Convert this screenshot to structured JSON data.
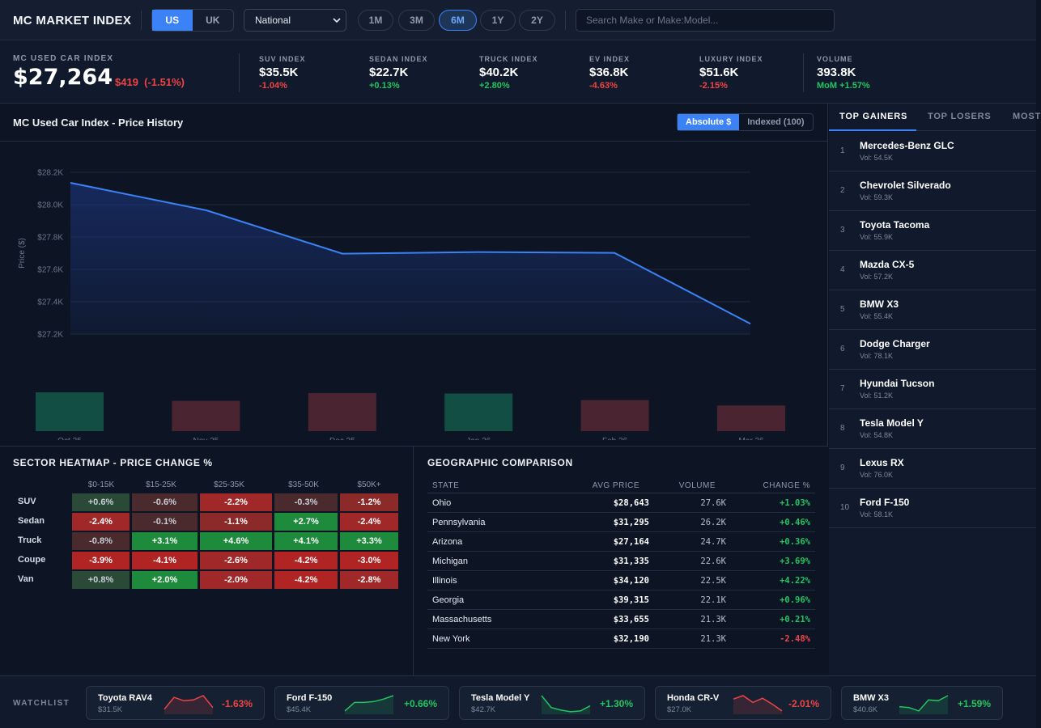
{
  "header": {
    "title": "MC MARKET INDEX",
    "region_options": [
      "US",
      "UK"
    ],
    "region_selected": "US",
    "scope_value": "National",
    "time_ranges": [
      "1M",
      "3M",
      "6M",
      "1Y",
      "2Y"
    ],
    "time_selected": "6M",
    "search_placeholder": "Search Make or Make:Model..."
  },
  "stats": {
    "main_label": "MC USED CAR INDEX",
    "main_value": "$27,264",
    "main_change": "$419  (-1.51%)",
    "items": [
      {
        "label": "SUV INDEX",
        "value": "$35.5K",
        "change": "-1.04%",
        "dir": "neg"
      },
      {
        "label": "SEDAN INDEX",
        "value": "$22.7K",
        "change": "+0.13%",
        "dir": "pos"
      },
      {
        "label": "TRUCK INDEX",
        "value": "$40.2K",
        "change": "+2.80%",
        "dir": "pos"
      },
      {
        "label": "EV INDEX",
        "value": "$36.8K",
        "change": "-4.63%",
        "dir": "neg"
      },
      {
        "label": "LUXURY INDEX",
        "value": "$51.6K",
        "change": "-2.15%",
        "dir": "neg"
      },
      {
        "label": "VOLUME",
        "value": "393.8K",
        "change": "MoM +1.57%",
        "dir": "pos"
      }
    ]
  },
  "chart_panel": {
    "title": "MC Used Car Index - Price History",
    "toggle_options": [
      "Absolute $",
      "Indexed (100)"
    ],
    "toggle_selected": "Absolute $"
  },
  "chart_data": {
    "type": "line",
    "ylabel": "Price ($)",
    "ylim": [
      27200,
      28200
    ],
    "yticks": [
      28200,
      28000,
      27800,
      27600,
      27400,
      27200
    ],
    "ytick_labels": [
      "$28.2K",
      "$28.0K",
      "$27.8K",
      "$27.6K",
      "$27.4K",
      "$27.2K"
    ],
    "x_labels": [
      "Oct 25",
      "Nov 25",
      "Dec 25",
      "Jan 26",
      "Feb 26",
      "Mar 26"
    ],
    "series": [
      {
        "values": [
          28135,
          27965,
          27697,
          27707,
          27702,
          27264
        ]
      }
    ],
    "volume_series": {
      "relative_values": [
        1.0,
        0.78,
        0.98,
        0.97,
        0.8,
        0.66
      ],
      "directions": [
        "up",
        "down",
        "down",
        "up",
        "down",
        "down"
      ]
    },
    "colors": {
      "line": "#3b82f6",
      "up_bar": "#134e44",
      "down_bar": "#4a2430"
    },
    "grid": true
  },
  "heatmap": {
    "title": "SECTOR HEATMAP - PRICE CHANGE %",
    "columns": [
      "$0-15K",
      "$15-25K",
      "$25-35K",
      "$35-50K",
      "$50K+"
    ],
    "rows": [
      {
        "label": "SUV",
        "values": [
          "+0.6%",
          "-0.6%",
          "-2.2%",
          "-0.3%",
          "-1.2%"
        ]
      },
      {
        "label": "Sedan",
        "values": [
          "-2.4%",
          "-0.1%",
          "-1.1%",
          "+2.7%",
          "-2.4%"
        ]
      },
      {
        "label": "Truck",
        "values": [
          "-0.8%",
          "+3.1%",
          "+4.6%",
          "+4.1%",
          "+3.3%"
        ]
      },
      {
        "label": "Coupe",
        "values": [
          "-3.9%",
          "-4.1%",
          "-2.6%",
          "-4.2%",
          "-3.0%"
        ]
      },
      {
        "label": "Van",
        "values": [
          "+0.8%",
          "+2.0%",
          "-2.0%",
          "-4.2%",
          "-2.8%"
        ]
      }
    ]
  },
  "geo": {
    "title": "GEOGRAPHIC COMPARISON",
    "headers": [
      "STATE",
      "AVG PRICE",
      "VOLUME",
      "CHANGE %"
    ],
    "rows": [
      {
        "state": "Ohio",
        "price": "$28,643",
        "volume": "27.6K",
        "change": "+1.03%",
        "dir": "pos"
      },
      {
        "state": "Pennsylvania",
        "price": "$31,295",
        "volume": "26.2K",
        "change": "+0.46%",
        "dir": "pos"
      },
      {
        "state": "Arizona",
        "price": "$27,164",
        "volume": "24.7K",
        "change": "+0.36%",
        "dir": "pos"
      },
      {
        "state": "Michigan",
        "price": "$31,335",
        "volume": "22.6K",
        "change": "+3.69%",
        "dir": "pos"
      },
      {
        "state": "Illinois",
        "price": "$34,120",
        "volume": "22.5K",
        "change": "+4.22%",
        "dir": "pos"
      },
      {
        "state": "Georgia",
        "price": "$39,315",
        "volume": "22.1K",
        "change": "+0.96%",
        "dir": "pos"
      },
      {
        "state": "Massachusetts",
        "price": "$33,655",
        "volume": "21.3K",
        "change": "+0.21%",
        "dir": "pos"
      },
      {
        "state": "New York",
        "price": "$32,190",
        "volume": "21.3K",
        "change": "-2.48%",
        "dir": "neg"
      }
    ]
  },
  "movers": {
    "tabs": [
      "TOP GAINERS",
      "TOP LOSERS",
      "MOST"
    ],
    "active_tab": "TOP GAINERS",
    "items": [
      {
        "rank": "1",
        "name": "Mercedes-Benz GLC",
        "vol": "Vol: 54.5K"
      },
      {
        "rank": "2",
        "name": "Chevrolet Silverado",
        "vol": "Vol: 59.3K"
      },
      {
        "rank": "3",
        "name": "Toyota Tacoma",
        "vol": "Vol: 55.9K"
      },
      {
        "rank": "4",
        "name": "Mazda CX-5",
        "vol": "Vol: 57.2K"
      },
      {
        "rank": "5",
        "name": "BMW X3",
        "vol": "Vol: 55.4K"
      },
      {
        "rank": "6",
        "name": "Dodge Charger",
        "vol": "Vol: 78.1K"
      },
      {
        "rank": "7",
        "name": "Hyundai Tucson",
        "vol": "Vol: 51.2K"
      },
      {
        "rank": "8",
        "name": "Tesla Model Y",
        "vol": "Vol: 54.8K"
      },
      {
        "rank": "9",
        "name": "Lexus RX",
        "vol": "Vol: 76.0K"
      },
      {
        "rank": "10",
        "name": "Ford F-150",
        "vol": "Vol: 58.1K"
      }
    ]
  },
  "watchlist": {
    "label": "WATCHLIST",
    "items": [
      {
        "name": "Toyota RAV4",
        "price": "$31.5K",
        "change": "-1.63%",
        "dir": "neg",
        "spark": [
          0.2,
          0.9,
          0.7,
          0.75,
          1.0,
          0.3
        ]
      },
      {
        "name": "Ford F-150",
        "price": "$45.4K",
        "change": "+0.66%",
        "dir": "pos",
        "spark": [
          0.1,
          0.6,
          0.6,
          0.65,
          0.8,
          1.0
        ]
      },
      {
        "name": "Tesla Model Y",
        "price": "$42.7K",
        "change": "+1.30%",
        "dir": "pos",
        "spark": [
          1.0,
          0.3,
          0.15,
          0.05,
          0.1,
          0.4
        ]
      },
      {
        "name": "Honda CR-V",
        "price": "$27.0K",
        "change": "-2.01%",
        "dir": "neg",
        "spark": [
          0.8,
          1.0,
          0.6,
          0.85,
          0.5,
          0.1
        ]
      },
      {
        "name": "BMW X3",
        "price": "$40.6K",
        "change": "+1.59%",
        "dir": "pos",
        "spark": [
          0.35,
          0.3,
          0.1,
          0.75,
          0.7,
          1.0
        ]
      }
    ]
  }
}
